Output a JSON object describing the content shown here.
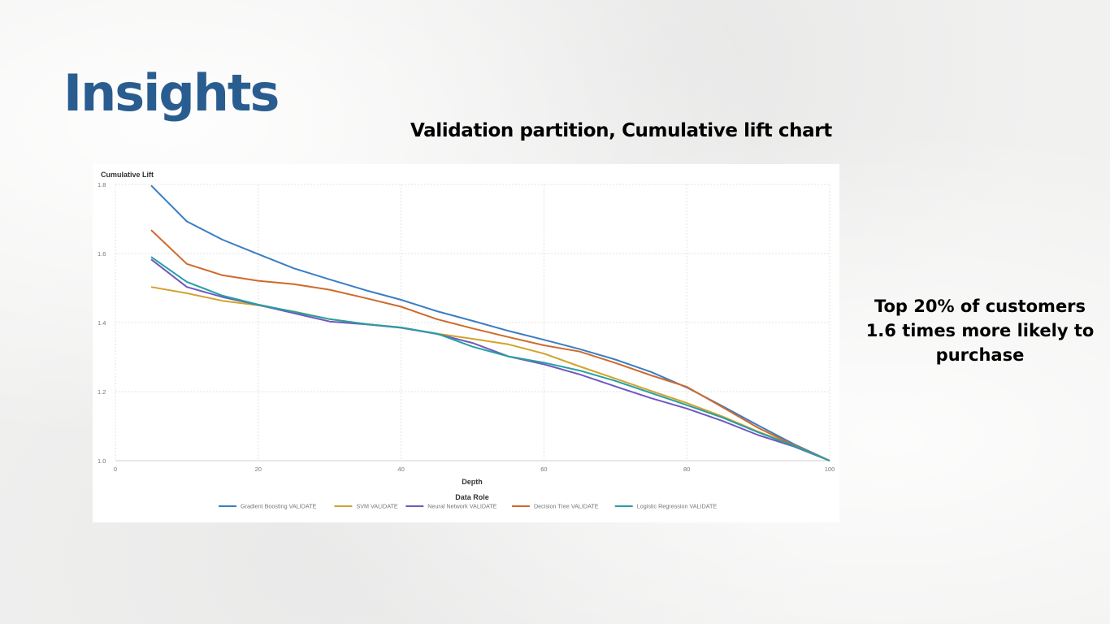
{
  "slide": {
    "title": "Insights",
    "subtitle": "Validation partition, Cumulative lift chart",
    "insight_lines": [
      "Top 20% of customers",
      "1.6 times more likely to",
      "purchase"
    ]
  },
  "chart_data": {
    "type": "line",
    "title": "",
    "ylabel": "Cumulative Lift",
    "xlabel": "Depth",
    "legend_title": "Data Role",
    "legend_position": "bottom",
    "xlim": [
      0,
      100
    ],
    "ylim": [
      1.0,
      1.8
    ],
    "x_ticks": [
      0,
      20,
      40,
      60,
      80,
      100
    ],
    "y_ticks": [
      1.0,
      1.2,
      1.4,
      1.6,
      1.8
    ],
    "y_tick_labels": [
      "1.0",
      "1.2",
      "1.4",
      "1.6",
      "1.8"
    ],
    "grid": true,
    "x": [
      5,
      10,
      15,
      20,
      25,
      30,
      35,
      40,
      45,
      50,
      55,
      60,
      65,
      70,
      75,
      80,
      85,
      90,
      95,
      100
    ],
    "series": [
      {
        "name": "Gradient Boosting VALIDATE",
        "color": "#3a7dc4",
        "values": [
          1.797,
          1.693,
          1.64,
          1.598,
          1.557,
          1.525,
          1.494,
          1.466,
          1.433,
          1.405,
          1.376,
          1.35,
          1.323,
          1.293,
          1.257,
          1.212,
          1.158,
          1.102,
          1.048,
          1.0
        ]
      },
      {
        "name": "SVM VALIDATE",
        "color": "#d1a32c",
        "values": [
          1.503,
          1.485,
          1.463,
          1.45,
          1.432,
          1.41,
          1.396,
          1.385,
          1.368,
          1.353,
          1.337,
          1.31,
          1.273,
          1.238,
          1.202,
          1.167,
          1.128,
          1.084,
          1.045,
          1.0
        ]
      },
      {
        "name": "Neural Network VALIDATE",
        "color": "#7058c0",
        "values": [
          1.583,
          1.503,
          1.474,
          1.451,
          1.427,
          1.403,
          1.395,
          1.385,
          1.367,
          1.341,
          1.302,
          1.279,
          1.25,
          1.215,
          1.181,
          1.151,
          1.115,
          1.074,
          1.041,
          1.0
        ]
      },
      {
        "name": "Decision Tree VALIDATE",
        "color": "#cf6a2b",
        "values": [
          1.668,
          1.57,
          1.537,
          1.521,
          1.511,
          1.495,
          1.471,
          1.446,
          1.41,
          1.383,
          1.358,
          1.334,
          1.316,
          1.283,
          1.247,
          1.214,
          1.155,
          1.095,
          1.045,
          1.0
        ]
      },
      {
        "name": "Logistic Regression VALIDATE",
        "color": "#26a1a1",
        "values": [
          1.59,
          1.518,
          1.478,
          1.452,
          1.431,
          1.41,
          1.396,
          1.386,
          1.368,
          1.33,
          1.302,
          1.284,
          1.261,
          1.231,
          1.196,
          1.161,
          1.125,
          1.082,
          1.043,
          1.0
        ]
      }
    ]
  }
}
